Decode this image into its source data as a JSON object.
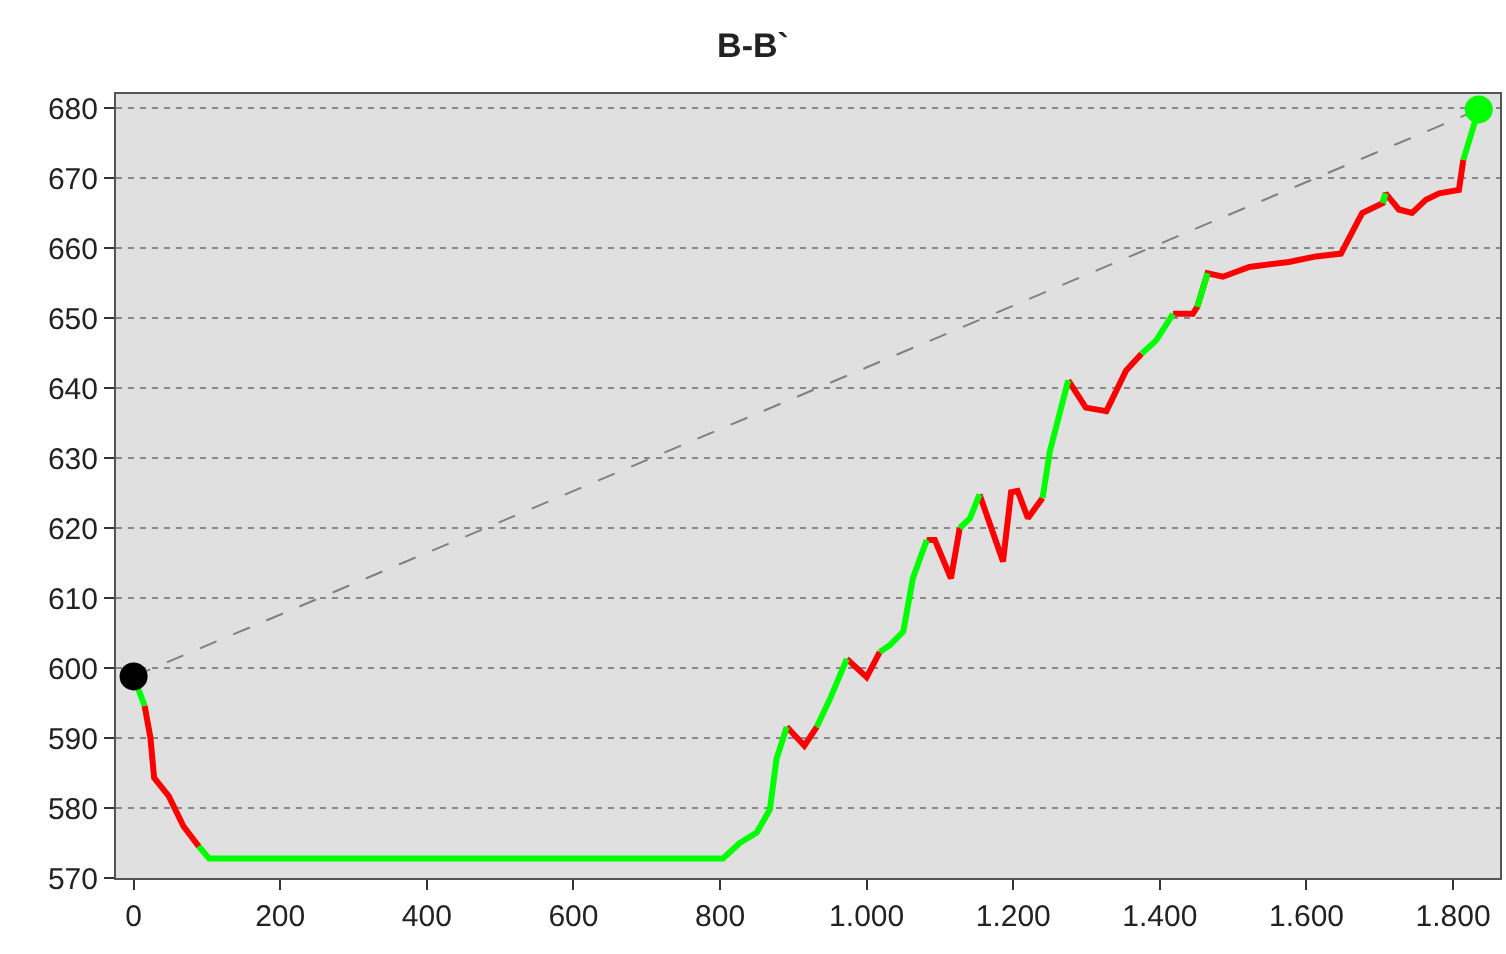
{
  "chart_data": {
    "type": "line",
    "title": "B-B`",
    "x": [
      0,
      15,
      23,
      28,
      48,
      68,
      89,
      103,
      804,
      827,
      850,
      868,
      877,
      891,
      915,
      932,
      950,
      973,
      1000,
      1018,
      1032,
      1050,
      1063,
      1082,
      1093,
      1115,
      1127,
      1141,
      1154,
      1186,
      1197,
      1206,
      1220,
      1240,
      1250,
      1275,
      1299,
      1327,
      1354,
      1375,
      1395,
      1418,
      1445,
      1451,
      1465,
      1486,
      1522,
      1576,
      1613,
      1647,
      1676,
      1704,
      1708,
      1726,
      1744,
      1763,
      1781,
      1808,
      1814,
      1835
    ],
    "series": [
      {
        "color": "#ff0000",
        "values": [
          null,
          594.6,
          590,
          584.3,
          581.7,
          577.4,
          574.5,
          null,
          null,
          null,
          null,
          null,
          null,
          591.6,
          588.9,
          591.6,
          null,
          601.3,
          598.7,
          602.3,
          null,
          null,
          null,
          618.3,
          618.3,
          612.8,
          620,
          null,
          624.8,
          615.2,
          625.1,
          625.3,
          621.4,
          624.3,
          null,
          641.1,
          637.2,
          636.7,
          642.5,
          644.9,
          null,
          650.6,
          650.6,
          651.6,
          656.4,
          655.9,
          657.3,
          658,
          658.8,
          659.2,
          665,
          666.4,
          667.8,
          665.5,
          665,
          666.9,
          667.8,
          668.3,
          672.6,
          null
        ]
      },
      {
        "color": "#00ff00",
        "values": [
          598.8,
          594.6,
          null,
          null,
          null,
          null,
          574.5,
          572.8,
          572.8,
          575,
          576.5,
          579.8,
          587,
          591.6,
          null,
          591.6,
          595.6,
          601.3,
          null,
          602.3,
          603.3,
          605.2,
          612.8,
          618.3,
          null,
          null,
          620,
          621.4,
          624.8,
          null,
          null,
          null,
          null,
          624.3,
          631,
          641.1,
          null,
          null,
          null,
          644.9,
          646.8,
          650.6,
          null,
          651.6,
          656.4,
          null,
          null,
          null,
          null,
          null,
          null,
          666.4,
          667.8,
          null,
          null,
          null,
          null,
          null,
          672.6,
          679.8
        ]
      },
      {
        "type": "line",
        "line_style": "dashed",
        "color": "#808080",
        "x": [
          0,
          1835
        ],
        "values": [
          598.8,
          679.8
        ]
      },
      {
        "type": "scatter",
        "marker": "circle",
        "color": "#000000",
        "values": [
          598.8,
          null,
          null,
          null,
          null,
          null,
          null,
          null,
          null,
          null,
          null,
          null,
          null,
          null,
          null,
          null,
          null,
          null,
          null,
          null,
          null,
          null,
          null,
          null,
          null,
          null,
          null,
          null,
          null,
          null,
          null,
          null,
          null,
          null,
          null,
          null,
          null,
          null,
          null,
          null,
          null,
          null,
          null,
          null,
          null,
          null,
          null,
          null,
          null,
          null,
          null,
          null,
          null,
          null,
          null,
          null,
          null,
          null,
          null,
          null
        ]
      },
      {
        "type": "scatter",
        "marker": "circle",
        "color": "#00ff00",
        "values": [
          null,
          null,
          null,
          null,
          null,
          null,
          null,
          null,
          null,
          null,
          null,
          null,
          null,
          null,
          null,
          null,
          null,
          null,
          null,
          null,
          null,
          null,
          null,
          null,
          null,
          null,
          null,
          null,
          null,
          null,
          null,
          null,
          null,
          null,
          null,
          null,
          null,
          null,
          null,
          null,
          null,
          null,
          null,
          null,
          null,
          null,
          null,
          null,
          null,
          null,
          null,
          null,
          null,
          null,
          null,
          null,
          null,
          null,
          null,
          679.8
        ]
      }
    ],
    "xlim": [
      -24,
      1864
    ],
    "ylim": [
      570,
      682
    ],
    "xticks": [
      0,
      200,
      400,
      600,
      800,
      {
        "value": 1000,
        "label": "1.000"
      },
      {
        "value": 1200,
        "label": "1.200"
      },
      {
        "value": 1400,
        "label": "1.400"
      },
      {
        "value": 1600,
        "label": "1.600"
      },
      {
        "value": 1800,
        "label": "1.800"
      }
    ],
    "yticks": [
      570,
      580,
      590,
      600,
      610,
      620,
      630,
      640,
      650,
      660,
      670,
      680
    ],
    "grid": "y",
    "legend": false
  }
}
